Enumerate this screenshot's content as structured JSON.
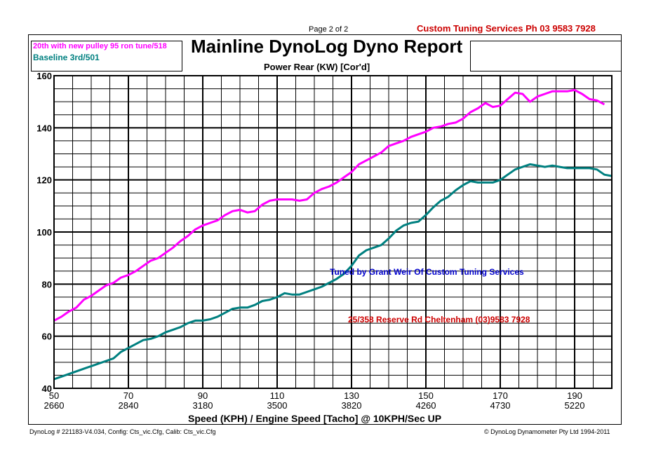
{
  "header": {
    "page": "Page 2 of 2",
    "company": "Custom Tuning Services  Ph 03 9583 7928",
    "title": "Mainline DynoLog Dyno Report",
    "plot_title": "Power Rear (KW) [Cor'd]"
  },
  "annotations": {
    "tuned_by": "Tuned by Grant Weir Of Custom Tuning Services",
    "address": "25/358 Reserve Rd Cheltenham (03)9583 7928"
  },
  "footer": {
    "left": "DynoLog # 221183-V4.034, Config: Cts_vic.Cfg, Calib: Cts_vic.Cfg",
    "right": "© DynoLog Dynamometer Pty Ltd 1994-2011"
  },
  "colors": {
    "series1": "#ff00ff",
    "series2": "#008080",
    "tuned_by": "#0000cc",
    "address": "#cc0000"
  },
  "chart_data": {
    "type": "line",
    "title": "Power Rear (KW) [Cor'd]",
    "xlabel": "Speed (KPH) / Engine Speed [Tacho] @ 10KPH/Sec UP",
    "ylabel": "",
    "xlim": [
      50,
      200
    ],
    "ylim": [
      40,
      160
    ],
    "grid": true,
    "legend_position": "top-left",
    "x_ticks": [
      50,
      70,
      90,
      110,
      130,
      150,
      170,
      190
    ],
    "x_tick_rpm": [
      "2660",
      "2840",
      "3180",
      "3500",
      "3820",
      "4260",
      "4730",
      "5220"
    ],
    "y_ticks": [
      40,
      60,
      80,
      100,
      120,
      140,
      160
    ],
    "series": [
      {
        "name": "20th with new pulley 95 ron tune/518",
        "x": [
          50,
          52,
          54,
          56,
          58,
          60,
          62,
          64,
          66,
          68,
          70,
          72,
          74,
          76,
          78,
          80,
          82,
          84,
          86,
          88,
          90,
          92,
          94,
          96,
          98,
          100,
          102,
          104,
          106,
          108,
          110,
          112,
          114,
          116,
          118,
          120,
          122,
          124,
          126,
          128,
          130,
          132,
          134,
          136,
          138,
          140,
          142,
          144,
          146,
          148,
          150,
          152,
          154,
          156,
          158,
          160,
          162,
          164,
          166,
          168,
          170,
          172,
          174,
          176,
          178,
          180,
          182,
          184,
          186,
          188,
          190,
          192,
          194,
          196,
          198
        ],
        "values": [
          66,
          67.5,
          69.5,
          71,
          74,
          75.5,
          77.5,
          79.5,
          80.5,
          82.5,
          83.5,
          85,
          87,
          89,
          90,
          92,
          94,
          96.5,
          98.5,
          101,
          102.5,
          103.5,
          104.5,
          106.5,
          108,
          108.5,
          107.5,
          108,
          110.5,
          112,
          112.5,
          112.5,
          112.5,
          112,
          112.5,
          115,
          116.5,
          117.5,
          119,
          121,
          123,
          126,
          127.5,
          129,
          130.5,
          133,
          134,
          135,
          136.5,
          137.5,
          138.5,
          140,
          140.5,
          141.5,
          142,
          143.5,
          146,
          147.5,
          149.5,
          148,
          148.5,
          151,
          153.5,
          153,
          150,
          152,
          153,
          154,
          154,
          154,
          154.5,
          153,
          151,
          150.5,
          149
        ]
      },
      {
        "name": "Baseline 3rd/501",
        "x": [
          50,
          52,
          54,
          56,
          58,
          60,
          62,
          64,
          66,
          68,
          70,
          72,
          74,
          76,
          78,
          80,
          82,
          84,
          86,
          88,
          90,
          92,
          94,
          96,
          98,
          100,
          102,
          104,
          106,
          108,
          110,
          112,
          114,
          116,
          118,
          120,
          122,
          124,
          126,
          128,
          130,
          132,
          134,
          136,
          138,
          140,
          142,
          144,
          146,
          148,
          150,
          152,
          154,
          156,
          158,
          160,
          162,
          164,
          166,
          168,
          170,
          172,
          174,
          176,
          178,
          180,
          182,
          184,
          186,
          188,
          190,
          192,
          194,
          196,
          198,
          200
        ],
        "values": [
          43.5,
          44.5,
          45.5,
          46.5,
          47.5,
          48.5,
          49.5,
          50.5,
          51.5,
          54,
          55.5,
          57,
          58.5,
          59,
          60,
          61.5,
          62.5,
          63.5,
          65,
          66,
          66,
          66.5,
          67.5,
          69,
          70.5,
          71,
          71,
          72,
          73.5,
          74,
          75,
          76.5,
          76,
          76,
          77,
          78,
          79,
          80.5,
          82,
          84,
          87,
          91,
          93,
          94,
          95,
          97.5,
          100.5,
          102.5,
          103.5,
          104,
          106.5,
          109.5,
          112,
          113.5,
          116,
          118,
          119.5,
          119,
          119,
          119,
          120,
          122,
          124,
          125,
          126,
          125.5,
          125,
          125.5,
          125,
          124.5,
          124.5,
          124.5,
          124.5,
          124,
          122,
          121.5
        ]
      }
    ]
  }
}
